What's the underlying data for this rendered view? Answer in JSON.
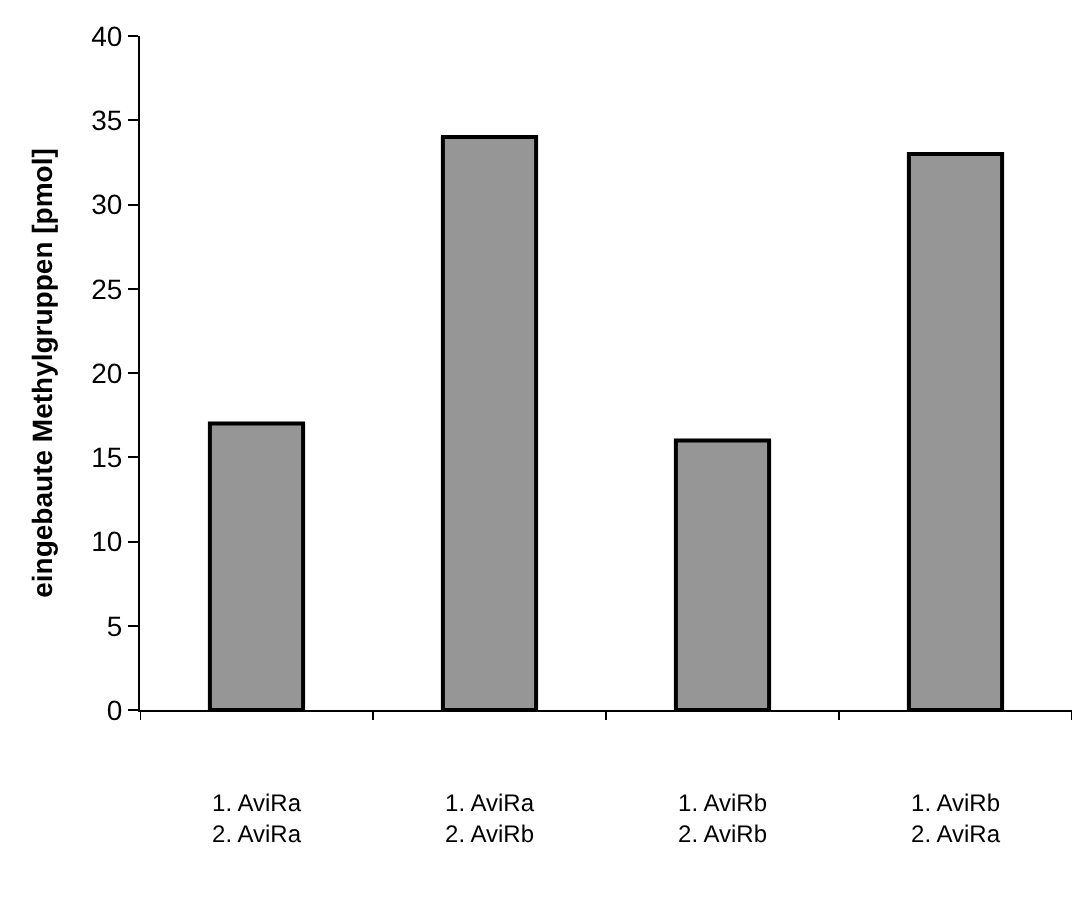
{
  "chart_data": {
    "type": "bar",
    "ylabel": "eingebaute Methylgruppen [pmol]",
    "categories": [
      "1. AviRa\n2. AviRa",
      "1. AviRa\n2. AviRb",
      "1. AviRb\n2. AviRb",
      "1. AviRb\n2. AviRa"
    ],
    "values": [
      17,
      34,
      16,
      33
    ],
    "color": "#969696",
    "ylim": [
      0,
      40
    ],
    "yticks": [
      0,
      5,
      10,
      15,
      20,
      25,
      30,
      35,
      40
    ]
  }
}
